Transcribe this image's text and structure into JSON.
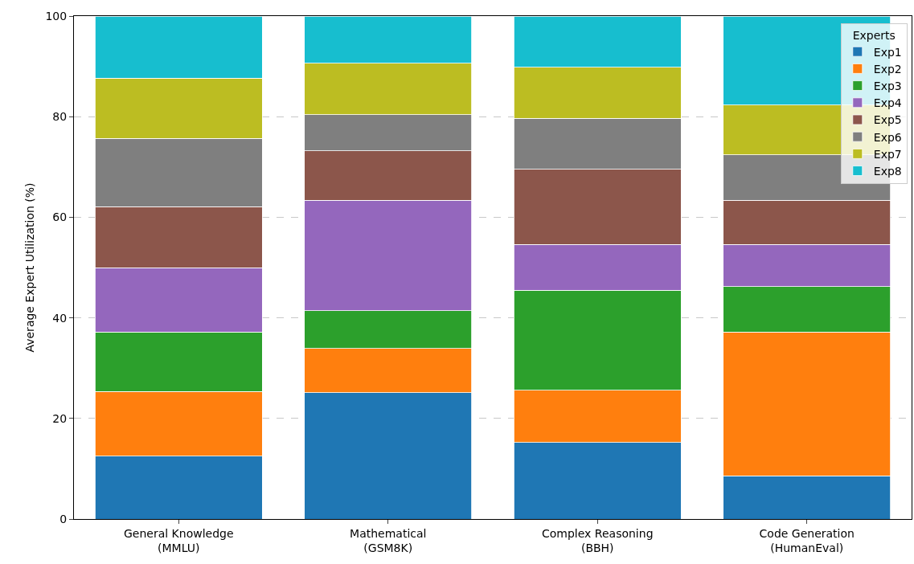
{
  "chart_data": {
    "type": "bar",
    "stacked": true,
    "ylabel": "Average Expert Utilization (%)",
    "legend_title": "Experts",
    "legend": "top right",
    "grid": "y",
    "categories": [
      "General Knowledge\n(MMLU)",
      "Mathematical\n(GSM8K)",
      "Complex Reasoning\n(BBH)",
      "Code Generation\n(HumanEval)"
    ],
    "ylim": [
      0,
      100
    ],
    "yticks": [
      0,
      20,
      40,
      60,
      80,
      100
    ],
    "series": [
      {
        "name": "Exp1",
        "color": "#1f77b4",
        "values": [
          12.5,
          25.1,
          15.2,
          8.6
        ]
      },
      {
        "name": "Exp2",
        "color": "#ff7f0e",
        "values": [
          12.9,
          8.8,
          10.4,
          28.6
        ]
      },
      {
        "name": "Exp3",
        "color": "#2ca02c",
        "values": [
          11.8,
          7.5,
          19.9,
          9.0
        ]
      },
      {
        "name": "Exp4",
        "color": "#9467bd",
        "values": [
          12.8,
          22.0,
          9.1,
          8.4
        ]
      },
      {
        "name": "Exp5",
        "color": "#8c564b",
        "values": [
          12.1,
          9.8,
          14.9,
          8.8
        ]
      },
      {
        "name": "Exp6",
        "color": "#7f7f7f",
        "values": [
          13.6,
          7.2,
          10.2,
          9.0
        ]
      },
      {
        "name": "Exp7",
        "color": "#bcbd22",
        "values": [
          12.0,
          10.2,
          10.1,
          9.9
        ]
      },
      {
        "name": "Exp8",
        "color": "#17becf",
        "values": [
          12.3,
          9.4,
          10.2,
          17.7
        ]
      }
    ]
  }
}
